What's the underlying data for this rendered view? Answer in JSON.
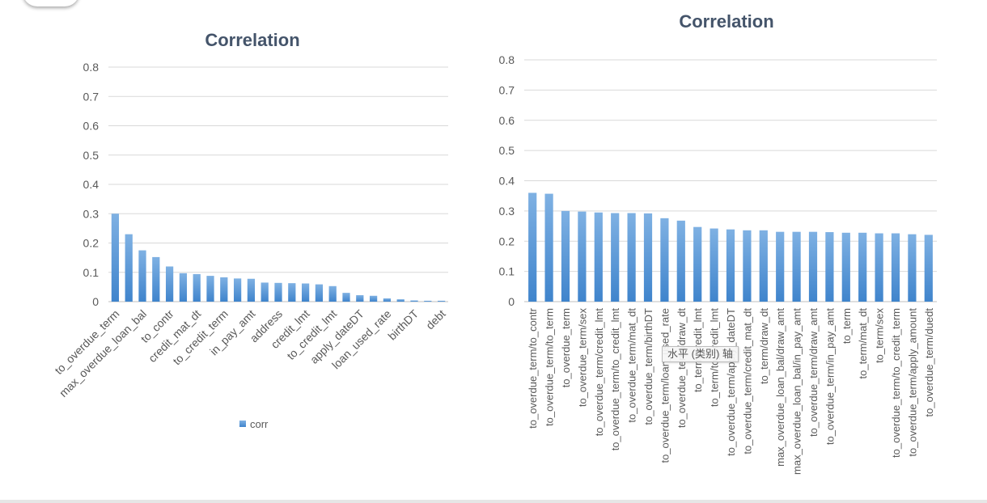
{
  "accent_color": "#5b9bd5",
  "chart_data": [
    {
      "type": "bar",
      "title": "Correlation",
      "xlabel": "",
      "ylabel": "",
      "ylim": [
        0,
        0.8
      ],
      "yticks": [
        "0",
        "0.1",
        "0.2",
        "0.3",
        "0.4",
        "0.5",
        "0.6",
        "0.7",
        "0.8"
      ],
      "legend": "bottom",
      "grid": true,
      "categories": [
        "to_overdue_term",
        "",
        "max_overdue_loan_bal",
        "",
        "to_contr",
        "",
        "credit_mat_dt",
        "",
        "to_credit_term",
        "",
        "in_pay_amt",
        "",
        "address",
        "",
        "credit_lmt",
        "",
        "to_credit_lmt",
        "",
        "apply_dateDT",
        "",
        "loan_used_rate",
        "",
        "birthDT",
        "",
        "debt"
      ],
      "series": [
        {
          "name": "corr",
          "values": [
            0.3,
            0.23,
            0.175,
            0.152,
            0.12,
            0.097,
            0.094,
            0.088,
            0.083,
            0.079,
            0.078,
            0.065,
            0.064,
            0.063,
            0.062,
            0.059,
            0.053,
            0.03,
            0.022,
            0.02,
            0.011,
            0.008,
            0.004,
            0.003,
            0.003
          ]
        }
      ]
    },
    {
      "type": "bar",
      "title": "Correlation",
      "xlabel": "",
      "ylabel": "",
      "ylim": [
        0,
        0.8
      ],
      "yticks": [
        "0",
        "0.1",
        "0.2",
        "0.3",
        "0.4",
        "0.5",
        "0.6",
        "0.7",
        "0.8"
      ],
      "grid": true,
      "categories": [
        "to_overdue_term/to_contr",
        "to_overdue_term/to_term",
        "to_overdue_term",
        "to_overdue_term/sex",
        "to_overdue_term/credit_lmt",
        "to_overdue_term/to_credit_lmt",
        "to_overdue_term/mat_dt",
        "to_overdue_term/birthDT",
        "to_overdue_term/loan_used_rate",
        "to_overdue_term/draw_dt",
        "to_term/credit_lmt",
        "to_term/to_credit_lmt",
        "to_overdue_term/apply_dateDT",
        "to_overdue_term/credit_mat_dt",
        "to_term/draw_dt",
        "max_overdue_loan_bal/draw_amt",
        "max_overdue_loan_bal/in_pay_amt",
        "to_overdue_term/draw_amt",
        "to_overdue_term/in_pay_amt",
        "to_term",
        "to_term/mat_dt",
        "to_term/sex",
        "to_overdue_term/to_credit_term",
        "to_overdue_term/apply_amount",
        "to_overdue_term/duedt"
      ],
      "series": [
        {
          "values": [
            0.36,
            0.357,
            0.3,
            0.298,
            0.295,
            0.293,
            0.293,
            0.292,
            0.276,
            0.268,
            0.247,
            0.242,
            0.239,
            0.236,
            0.236,
            0.231,
            0.231,
            0.231,
            0.23,
            0.228,
            0.228,
            0.226,
            0.226,
            0.223,
            0.221
          ]
        }
      ]
    }
  ],
  "tooltip_text": "水平 (类别) 轴"
}
